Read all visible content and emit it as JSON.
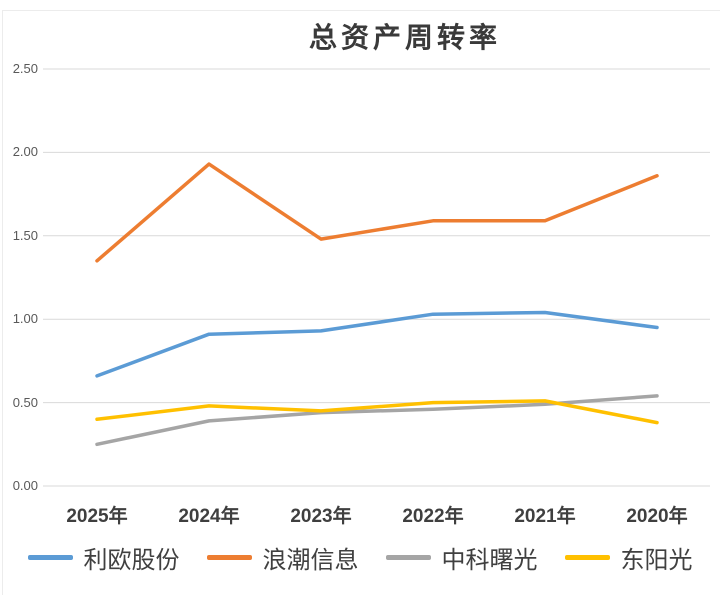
{
  "chart_data": {
    "type": "line",
    "title": "总资产周转率",
    "categories": [
      "2025年",
      "2024年",
      "2023年",
      "2022年",
      "2021年",
      "2020年"
    ],
    "series": [
      {
        "name": "利欧股份",
        "color": "#5B9BD5",
        "values": [
          0.66,
          0.91,
          0.93,
          1.03,
          1.04,
          0.95
        ]
      },
      {
        "name": "浪潮信息",
        "color": "#ED7D31",
        "values": [
          1.35,
          1.93,
          1.48,
          1.59,
          1.59,
          1.86
        ]
      },
      {
        "name": "中科曙光",
        "color": "#A5A5A5",
        "values": [
          0.25,
          0.39,
          0.44,
          0.46,
          0.49,
          0.54
        ]
      },
      {
        "name": "东阳光",
        "color": "#FFC000",
        "values": [
          0.4,
          0.48,
          0.45,
          0.5,
          0.51,
          0.38
        ]
      }
    ],
    "xlabel": "",
    "ylabel": "",
    "ylim": [
      0,
      2.5
    ],
    "ytick_step": 0.5,
    "yticks_top_down": [
      "2.50",
      "2.00",
      "1.50",
      "1.00",
      "0.50",
      "0.00"
    ],
    "grid": true,
    "legend_position": "bottom"
  },
  "colors": {
    "gridline": "#D9D9D9",
    "title_text": "#3A3A3A",
    "ytick_text": "#595959",
    "xtick_text": "#3F3F3F",
    "legend_text": "#404040",
    "frame": "#ECECEC",
    "background": "#FFFFFF"
  }
}
